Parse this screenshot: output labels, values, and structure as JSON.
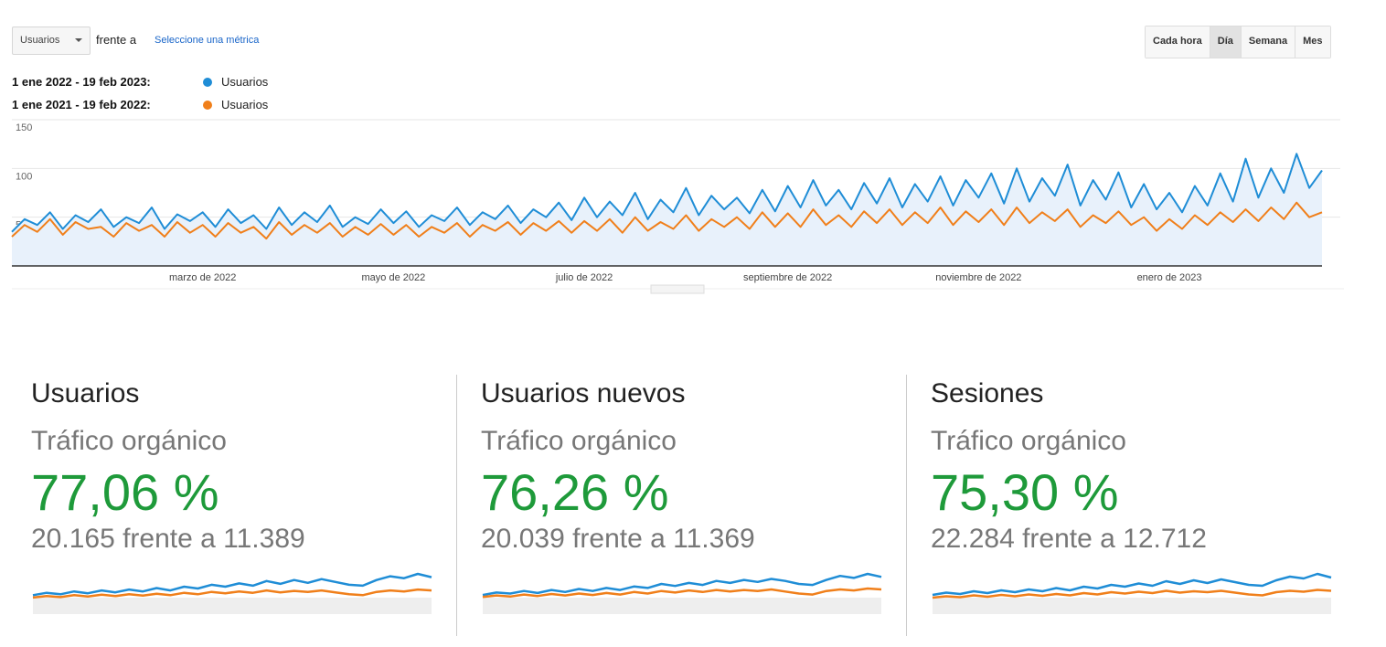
{
  "toolbar": {
    "metric": "Usuarios",
    "compare": "frente a",
    "select_metric": "Seleccione una métrica",
    "intervals": [
      "Cada hora",
      "Día",
      "Semana",
      "Mes"
    ],
    "selected_interval": "Día"
  },
  "chart_data": {
    "type": "line",
    "categories": [
      null,
      null,
      null,
      null,
      null,
      null,
      null,
      null,
      null,
      null,
      null,
      null,
      null,
      null,
      null,
      "marzo de 2022",
      null,
      null,
      null,
      null,
      null,
      null,
      null,
      null,
      null,
      null,
      null,
      null,
      null,
      null,
      "mayo de 2022",
      null,
      null,
      null,
      null,
      null,
      null,
      null,
      null,
      null,
      null,
      null,
      null,
      null,
      null,
      "julio de 2022",
      null,
      null,
      null,
      null,
      null,
      null,
      null,
      null,
      null,
      null,
      null,
      null,
      null,
      null,
      null,
      "septiembre de 2022",
      null,
      null,
      null,
      null,
      null,
      null,
      null,
      null,
      null,
      null,
      null,
      null,
      null,
      null,
      "noviembre de 2022",
      null,
      null,
      null,
      null,
      null,
      null,
      null,
      null,
      null,
      null,
      null,
      null,
      null,
      null,
      "enero de 2023",
      null,
      null,
      null,
      null,
      null,
      null,
      null,
      null,
      null,
      null,
      null,
      null
    ],
    "ylim": [
      0,
      150
    ],
    "yticks": [
      50,
      100,
      150
    ],
    "grid": true,
    "series": [
      {
        "name": "Usuarios",
        "period": "1 ene 2022 - 19 feb 2023:",
        "color": "#1f8dd6",
        "area": true,
        "values": [
          35,
          48,
          42,
          55,
          38,
          52,
          45,
          58,
          40,
          50,
          44,
          60,
          38,
          53,
          46,
          55,
          40,
          58,
          44,
          52,
          38,
          60,
          42,
          55,
          45,
          62,
          40,
          50,
          43,
          58,
          44,
          56,
          40,
          52,
          46,
          60,
          42,
          55,
          48,
          62,
          44,
          58,
          50,
          65,
          47,
          70,
          50,
          66,
          52,
          75,
          48,
          68,
          55,
          80,
          52,
          72,
          58,
          70,
          54,
          78,
          56,
          82,
          60,
          88,
          62,
          78,
          58,
          85,
          64,
          90,
          60,
          84,
          66,
          92,
          62,
          88,
          70,
          95,
          64,
          100,
          66,
          90,
          72,
          104,
          62,
          88,
          68,
          96,
          60,
          84,
          58,
          75,
          55,
          82,
          62,
          95,
          66,
          110,
          70,
          100,
          75,
          115,
          80,
          98
        ]
      },
      {
        "name": "Usuarios",
        "period": "1 ene 2021 - 19 feb 2022:",
        "color": "#f07f1a",
        "area": false,
        "values": [
          30,
          42,
          35,
          48,
          32,
          45,
          38,
          40,
          30,
          44,
          36,
          42,
          30,
          45,
          34,
          42,
          30,
          44,
          34,
          40,
          28,
          45,
          32,
          42,
          34,
          44,
          30,
          40,
          32,
          43,
          32,
          42,
          30,
          40,
          34,
          44,
          30,
          42,
          36,
          45,
          32,
          44,
          36,
          46,
          34,
          46,
          36,
          48,
          34,
          50,
          36,
          45,
          38,
          52,
          36,
          48,
          40,
          50,
          38,
          55,
          40,
          54,
          40,
          58,
          42,
          52,
          40,
          56,
          44,
          58,
          42,
          55,
          44,
          60,
          42,
          56,
          45,
          58,
          42,
          60,
          44,
          55,
          46,
          58,
          40,
          52,
          44,
          56,
          42,
          50,
          36,
          48,
          38,
          52,
          42,
          55,
          45,
          58,
          46,
          60,
          48,
          65,
          50,
          55
        ]
      }
    ]
  },
  "cards": [
    {
      "title": "Usuarios",
      "subtitle": "Tráfico orgánico",
      "change": "77,06 %",
      "comparison": "20.165 frente a 11.389",
      "sparkline": [
        {
          "color": "#1f8dd6",
          "values": [
            40,
            45,
            42,
            48,
            44,
            50,
            46,
            52,
            48,
            55,
            50,
            58,
            54,
            62,
            58,
            65,
            60,
            70,
            64,
            72,
            66,
            74,
            68,
            62,
            60,
            72,
            80,
            76,
            85,
            78
          ]
        },
        {
          "color": "#f07f1a",
          "values": [
            35,
            38,
            36,
            40,
            37,
            41,
            38,
            42,
            39,
            43,
            40,
            45,
            42,
            47,
            44,
            48,
            45,
            50,
            46,
            49,
            47,
            50,
            46,
            42,
            40,
            47,
            50,
            48,
            52,
            50
          ]
        }
      ]
    },
    {
      "title": "Usuarios nuevos",
      "subtitle": "Tráfico orgánico",
      "change": "76,26 %",
      "comparison": "20.039 frente a 11.369",
      "sparkline": [
        {
          "color": "#1f8dd6",
          "values": [
            38,
            43,
            41,
            46,
            42,
            48,
            44,
            50,
            46,
            52,
            48,
            55,
            52,
            60,
            56,
            62,
            58,
            66,
            62,
            68,
            64,
            70,
            66,
            60,
            58,
            68,
            76,
            72,
            80,
            74
          ]
        },
        {
          "color": "#f07f1a",
          "values": [
            34,
            37,
            35,
            39,
            36,
            40,
            37,
            41,
            38,
            42,
            39,
            44,
            41,
            46,
            43,
            47,
            44,
            48,
            45,
            48,
            46,
            49,
            45,
            41,
            39,
            46,
            49,
            47,
            51,
            49
          ]
        }
      ]
    },
    {
      "title": "Sesiones",
      "subtitle": "Tráfico orgánico",
      "change": "75,30 %",
      "comparison": "22.284 frente a 12.712",
      "sparkline": [
        {
          "color": "#1f8dd6",
          "values": [
            42,
            47,
            44,
            50,
            46,
            52,
            48,
            54,
            50,
            57,
            52,
            60,
            56,
            64,
            60,
            67,
            62,
            72,
            66,
            74,
            68,
            76,
            70,
            64,
            62,
            74,
            82,
            78,
            88,
            80
          ]
        },
        {
          "color": "#f07f1a",
          "values": [
            36,
            39,
            37,
            41,
            38,
            42,
            39,
            43,
            40,
            44,
            41,
            46,
            43,
            48,
            45,
            49,
            46,
            51,
            47,
            50,
            48,
            51,
            47,
            43,
            41,
            48,
            51,
            49,
            53,
            51
          ]
        }
      ]
    }
  ]
}
